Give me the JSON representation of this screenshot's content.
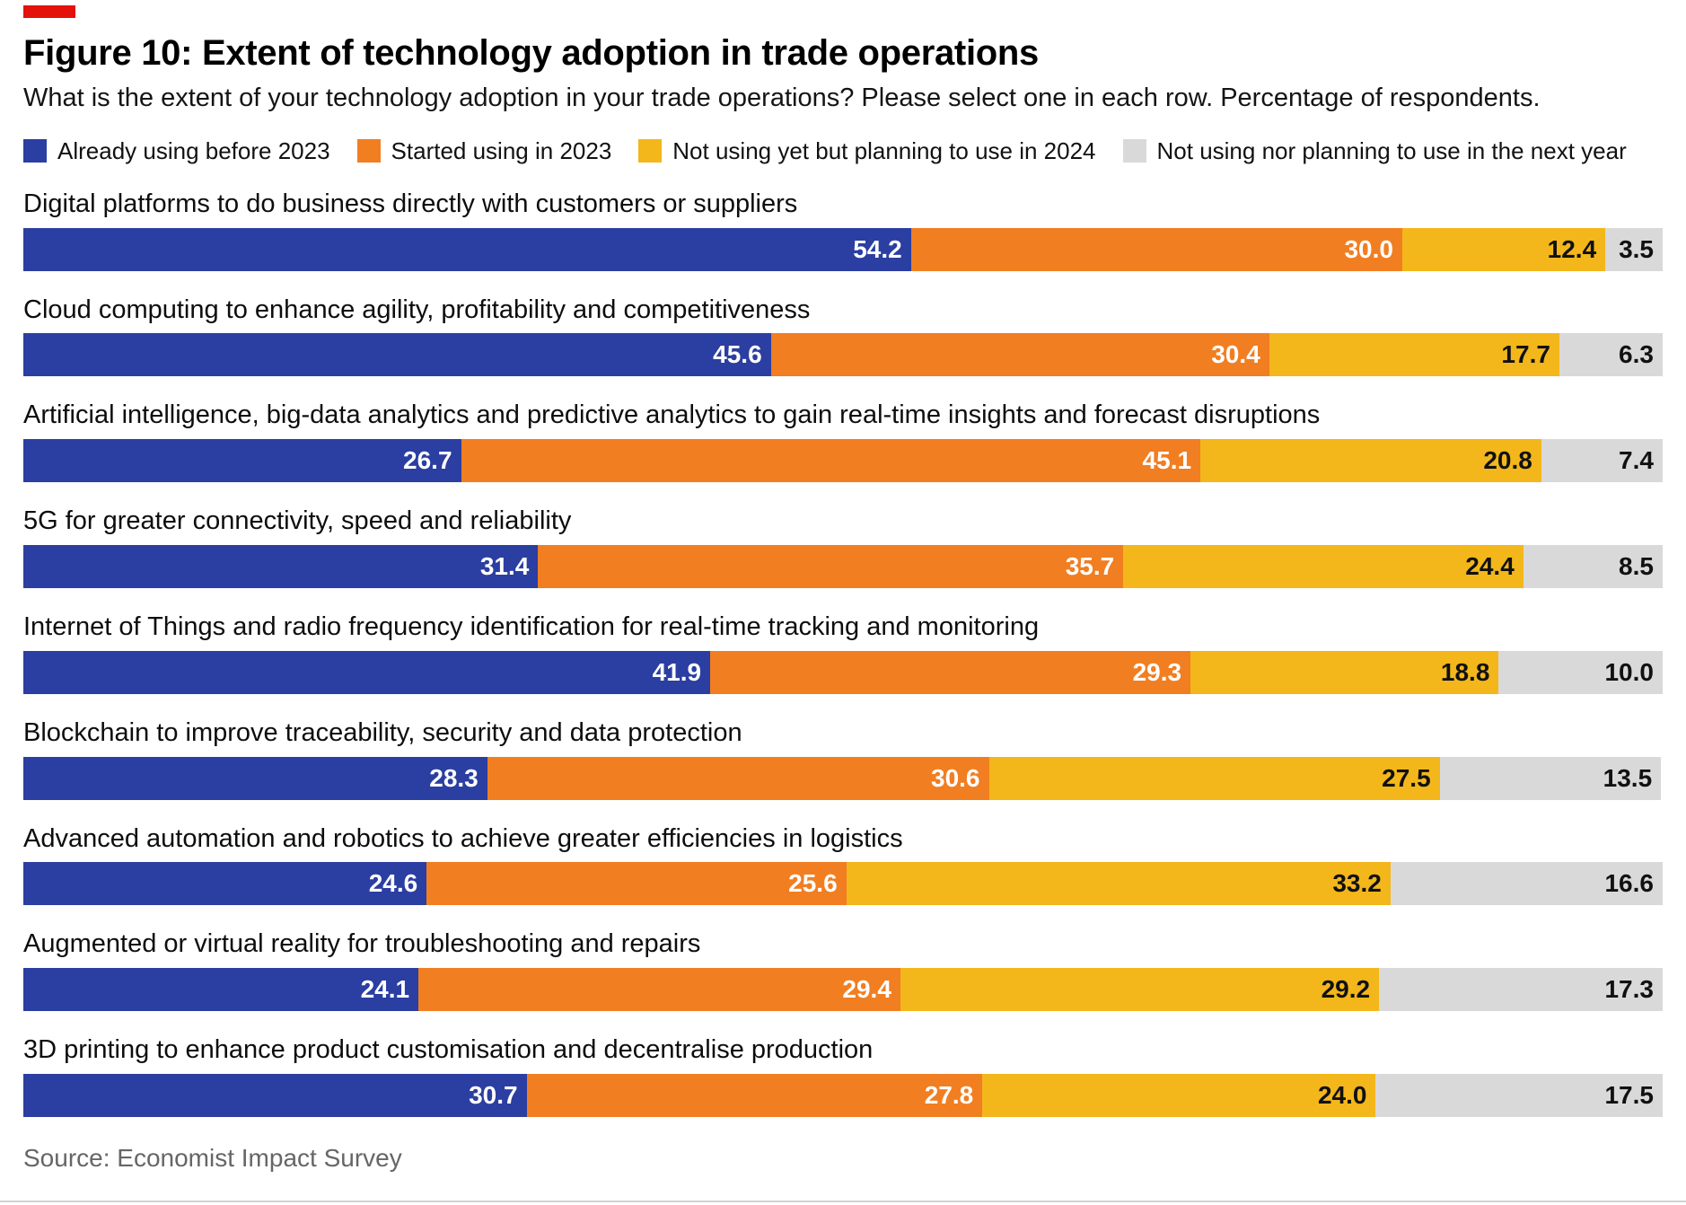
{
  "page": {
    "title": "Figure 10: Extent of technology adoption in trade operations",
    "subtitle": "What is the extent of your technology adoption in your trade operations? Please select one in each row. Percentage of respondents.",
    "source": "Source: Economist Impact Survey",
    "accent_color": "#e3120b"
  },
  "chart_data": {
    "type": "bar",
    "orientation": "horizontal",
    "stacked": true,
    "unit": "percent of respondents",
    "xlim": [
      0,
      100
    ],
    "grid": false,
    "legend_position": "top",
    "value_label_style": "inside right-aligned, one decimal",
    "title": "Figure 10: Extent of technology adoption in trade operations",
    "categories": [
      "Digital platforms to do business directly with customers or suppliers",
      "Cloud computing to enhance agility, profitability and competitiveness",
      "Artificial intelligence, big-data analytics and predictive analytics to gain real-time insights and forecast disruptions",
      "5G for greater connectivity, speed and reliability",
      "Internet of Things and radio frequency identification for real-time tracking and monitoring",
      "Blockchain to improve traceability, security and data protection",
      "Advanced automation and robotics to achieve greater efficiencies in logistics",
      "Augmented or virtual reality for troubleshooting and repairs",
      "3D printing to enhance product customisation and decentralise production"
    ],
    "series": [
      {
        "name": "Already using before 2023",
        "color": "#2b3ea1",
        "label_color": "#ffffff",
        "values": [
          54.2,
          45.6,
          26.7,
          31.4,
          41.9,
          28.3,
          24.6,
          24.1,
          30.7
        ]
      },
      {
        "name": "Started using in 2023",
        "color": "#f17e21",
        "label_color": "#ffffff",
        "values": [
          30.0,
          30.4,
          45.1,
          35.7,
          29.3,
          30.6,
          25.6,
          29.4,
          27.8
        ]
      },
      {
        "name": "Not using yet but planning to use in 2024",
        "color": "#f3b71b",
        "label_color": "#111111",
        "values": [
          12.4,
          17.7,
          20.8,
          24.4,
          18.8,
          27.5,
          33.2,
          29.2,
          24.0
        ]
      },
      {
        "name": "Not using nor planning to use in the next year",
        "color": "#d9d9d9",
        "label_color": "#111111",
        "values": [
          3.5,
          6.3,
          7.4,
          8.5,
          10.0,
          13.5,
          16.6,
          17.3,
          17.5
        ]
      }
    ]
  }
}
